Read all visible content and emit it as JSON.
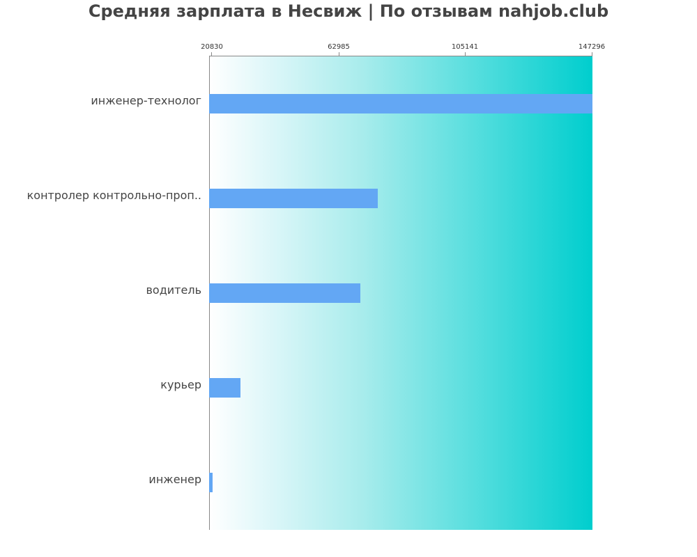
{
  "chart_data": {
    "type": "bar",
    "orientation": "horizontal",
    "title": "Средняя зарплата в Несвиж | По отзывам nahjob.club",
    "xlabel": "",
    "ylabel": "",
    "xlim": [
      20830,
      147296
    ],
    "x_ticks": [
      "20830",
      "62985",
      "105141",
      "147296"
    ],
    "grid": false,
    "legend": null,
    "categories": [
      "инженер-технолог",
      "контролер контрольно-проп..",
      "водитель",
      "курьер",
      "инженер"
    ],
    "values": [
      147296,
      76500,
      70700,
      31200,
      22000
    ],
    "bar_color": "#63a7f4",
    "background_gradient": [
      "#ffffff",
      "#00cece"
    ]
  }
}
